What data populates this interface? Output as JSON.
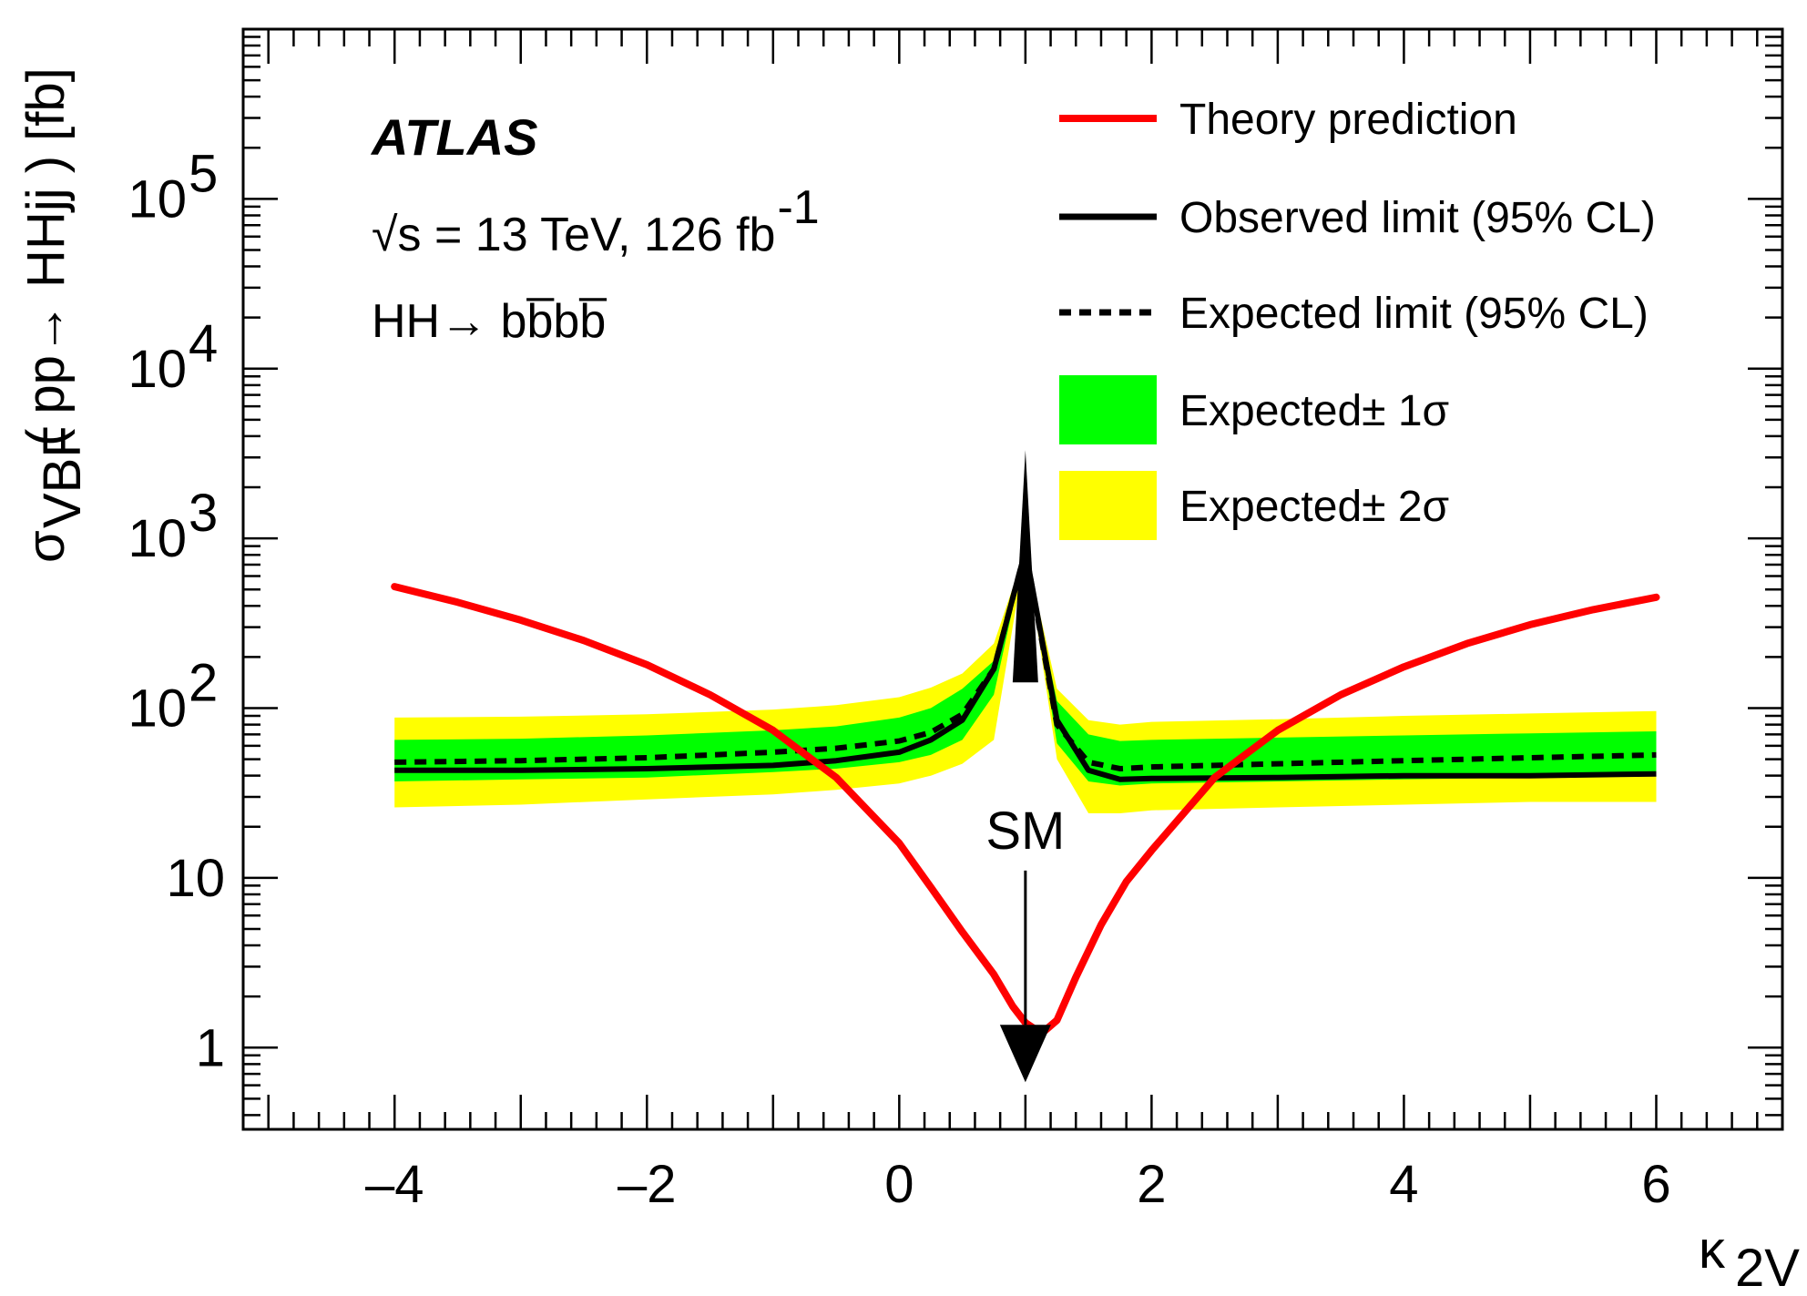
{
  "chart_data": {
    "type": "line",
    "experiment": "ATLAS",
    "energy_label": "√s = 13 TeV, 126 fb",
    "energy_label_sup": "-1",
    "process_label": "HH→ bb̅bb̅",
    "xlabel": "κ",
    "xlabel_sub": "2V",
    "ylabel_sigma": "σ",
    "ylabel_sub": "VBF",
    "ylabel_rest": "( pp→ HHjj ) [fb]",
    "xlim": [
      -5.2,
      7.0
    ],
    "ylim": [
      0.33,
      1000000
    ],
    "yscale": "log",
    "x_ticks": [
      -4,
      -2,
      0,
      2,
      4,
      6
    ],
    "x_tick_labels": [
      "–4",
      "–2",
      "0",
      "2",
      "4",
      "6"
    ],
    "y_ticks": [
      {
        "value": 1,
        "base": "1",
        "exp": ""
      },
      {
        "value": 10,
        "base": "10",
        "exp": ""
      },
      {
        "value": 100,
        "base": "10",
        "exp": "2"
      },
      {
        "value": 1000,
        "base": "10",
        "exp": "3"
      },
      {
        "value": 10000,
        "base": "10",
        "exp": "4"
      },
      {
        "value": 100000,
        "base": "10",
        "exp": "5"
      }
    ],
    "legend": [
      {
        "key": "theory",
        "label": "Theory prediction",
        "color": "#ff0000"
      },
      {
        "key": "observed",
        "label": "Observed limit (95% CL)",
        "color": "#000000"
      },
      {
        "key": "expected",
        "label": "Expected limit (95% CL)",
        "color": "#000000"
      },
      {
        "key": "band1",
        "label": "Expected± 1σ",
        "color": "#00ff00"
      },
      {
        "key": "band2",
        "label": "Expected± 2σ",
        "color": "#ffff00"
      }
    ],
    "legend_position": "top-right",
    "annotation": {
      "text": "SM",
      "x": 1.0
    },
    "limit_x": [
      -4,
      -3,
      -2,
      -1,
      -0.5,
      0,
      0.25,
      0.5,
      0.75,
      1.0,
      1.25,
      1.5,
      1.75,
      2,
      3,
      4,
      5,
      6
    ],
    "observed": [
      43,
      43,
      44,
      46,
      49,
      55,
      65,
      85,
      170,
      850,
      85,
      43,
      38,
      38.5,
      39,
      40,
      40,
      41
    ],
    "expected": [
      48,
      49,
      51,
      55,
      58,
      64,
      72,
      92,
      170,
      850,
      80,
      48,
      44,
      45,
      47,
      49,
      51,
      53
    ],
    "band1_low": [
      37,
      38,
      39,
      42,
      44,
      48,
      53,
      65,
      120,
      850,
      62,
      37,
      35,
      36,
      37,
      38,
      39,
      40
    ],
    "band1_high": [
      65,
      66,
      69,
      74,
      78,
      88,
      100,
      130,
      190,
      850,
      110,
      70,
      64,
      65,
      67,
      69,
      71,
      73
    ],
    "band2_low": [
      26,
      27,
      29,
      31,
      33,
      36,
      40,
      47,
      65,
      850,
      50,
      24,
      24,
      25,
      26,
      27,
      28,
      28
    ],
    "band2_high": [
      88,
      89,
      92,
      98,
      104,
      116,
      132,
      160,
      240,
      850,
      130,
      85,
      80,
      83,
      86,
      90,
      93,
      96
    ],
    "theory_x": [
      -4,
      -3.5,
      -3,
      -2.5,
      -2,
      -1.5,
      -1,
      -0.5,
      0,
      0.25,
      0.5,
      0.75,
      0.9,
      1.0,
      1.1,
      1.15,
      1.25,
      1.4,
      1.6,
      1.8,
      2.0,
      2.5,
      3,
      3.5,
      4,
      4.5,
      5,
      5.5,
      6
    ],
    "theory": [
      520,
      420,
      330,
      250,
      180,
      120,
      74,
      39,
      16,
      8.8,
      4.8,
      2.7,
      1.75,
      1.4,
      1.25,
      1.25,
      1.45,
      2.6,
      5.3,
      9.5,
      14.5,
      39,
      74,
      120,
      175,
      240,
      310,
      380,
      450
    ]
  }
}
